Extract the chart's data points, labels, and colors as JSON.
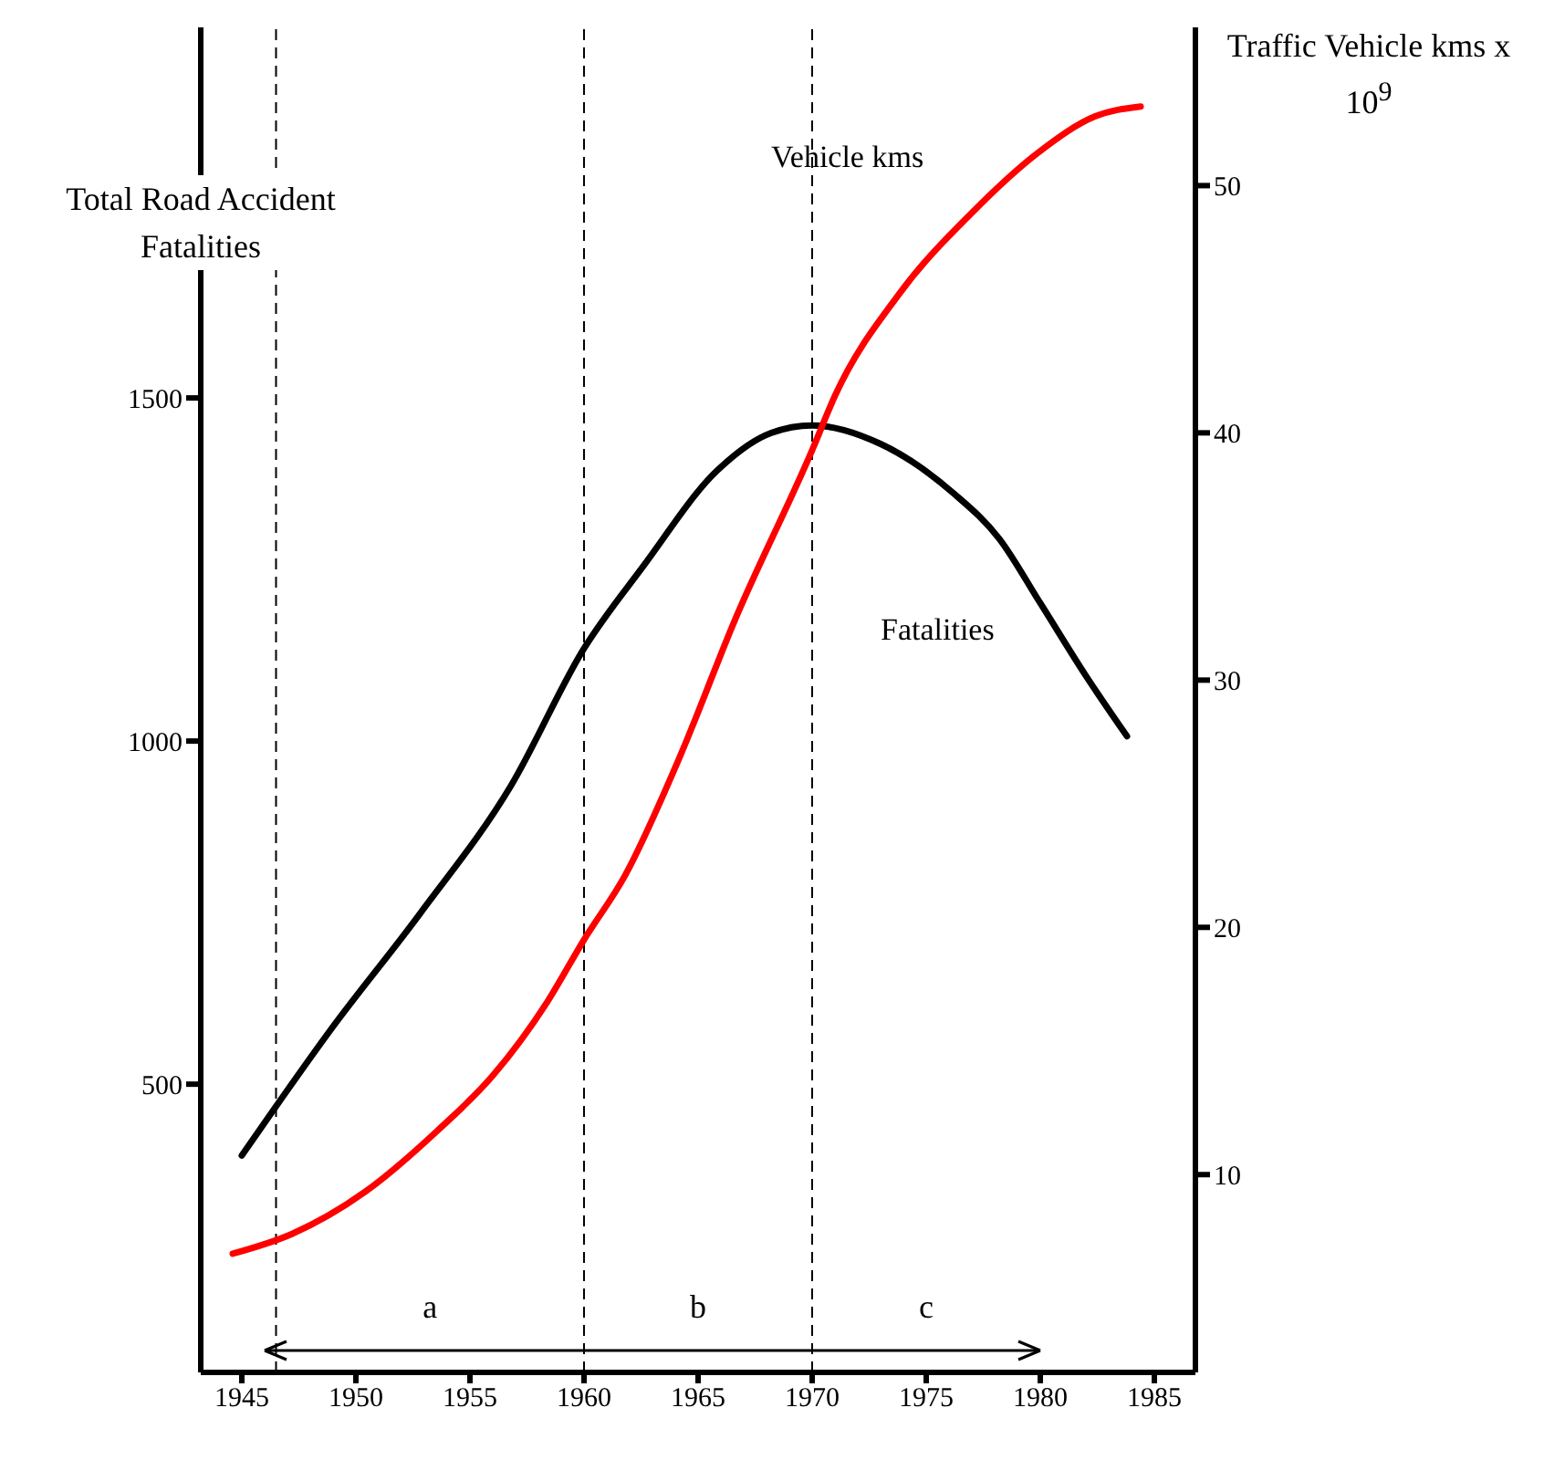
{
  "chart_data": {
    "type": "line",
    "ylabel": "Total Road Accident Fatalities",
    "y2label": "Traffic Vehicle kms x 10$^{9}$",
    "xlim": [
      1943.2,
      1986.8
    ],
    "xticks": [
      1945,
      1950,
      1955,
      1960,
      1965,
      1970,
      1975,
      1980,
      1985
    ],
    "ylim": [
      80,
      2040
    ],
    "yticks": [
      500,
      1000,
      1500
    ],
    "y2lim": [
      2,
      56.4
    ],
    "y2ticks": [
      10,
      20,
      30,
      40,
      50
    ],
    "grid": false,
    "marker": "none",
    "line_style": "solid",
    "series": [
      {
        "name": "Fatalities",
        "color": "#000000",
        "axis": "y",
        "x": [
          1945,
          1946.4,
          1948.8,
          1952.8,
          1956.8,
          1960,
          1962.6,
          1965.8,
          1968.2,
          1970,
          1973,
          1976.2,
          1978.2,
          1980,
          1982,
          1983.8
        ],
        "values": [
          396,
          463,
          575,
          748,
          935,
          1135,
          1255,
          1393,
          1449,
          1460,
          1433,
          1361,
          1295,
          1201,
          1095,
          1007
        ]
      },
      {
        "name": "Vehicle kms",
        "color": "#ff0000",
        "axis": "y2",
        "x": [
          1944.6,
          1947.2,
          1950.4,
          1953.6,
          1956,
          1958.4,
          1960,
          1961.8,
          1964.2,
          1966.6,
          1970,
          1971,
          1973.8,
          1977,
          1980,
          1982.4,
          1984.4
        ],
        "values": [
          6.8,
          7.6,
          9.3,
          11.8,
          14.0,
          17.0,
          19.5,
          22.1,
          26.9,
          32.4,
          39.3,
          41.5,
          45.6,
          48.9,
          51.4,
          52.8,
          53.2
        ]
      }
    ],
    "ref_lines": [
      {
        "axis": "x",
        "value": 1946.5,
        "color": "#000000",
        "line_style": "dashed"
      },
      {
        "axis": "x",
        "value": 1960,
        "color": "#000000",
        "line_style": "dashed"
      },
      {
        "axis": "x",
        "value": 1970,
        "color": "#000000",
        "line_style": "dashed"
      }
    ],
    "annotations": [
      "a",
      "b",
      "c"
    ]
  }
}
